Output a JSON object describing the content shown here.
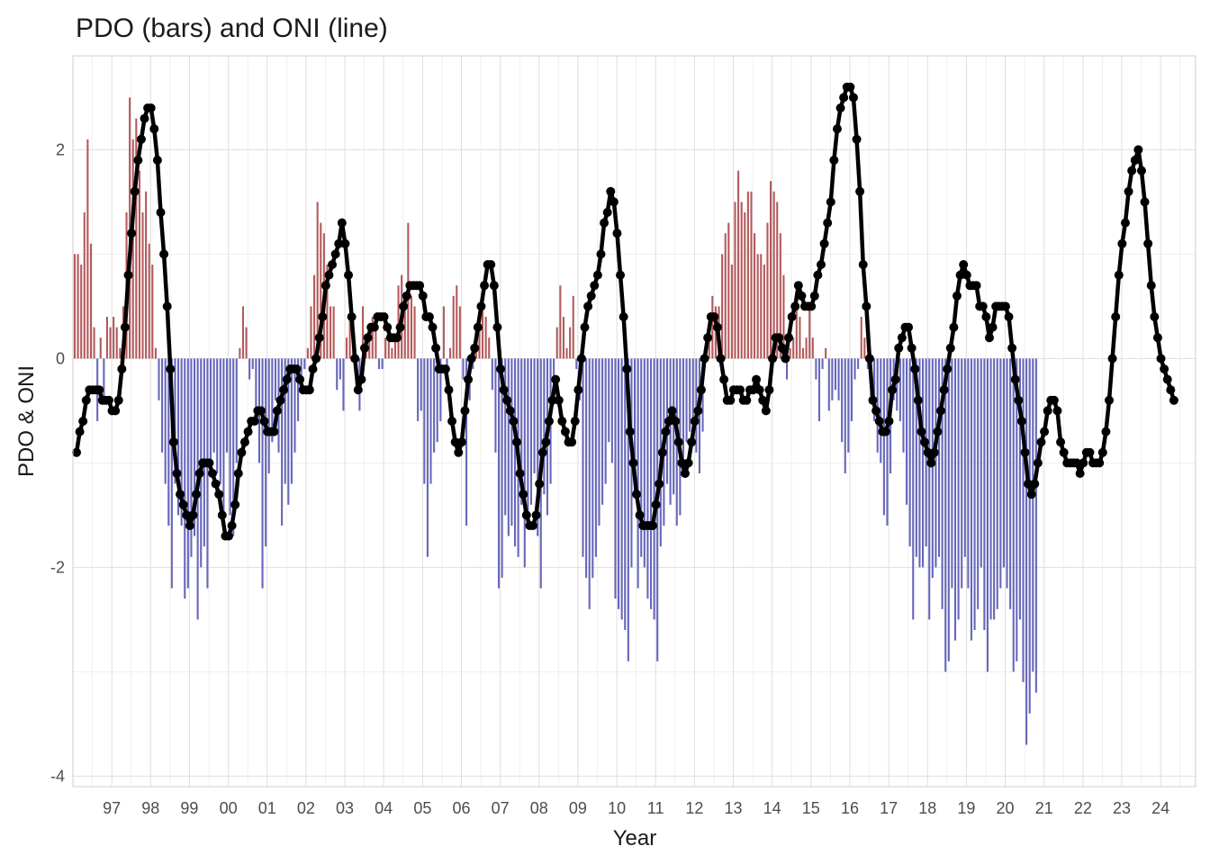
{
  "chart_data": {
    "type": "bar",
    "title": "PDO (bars) and ONI (line)",
    "xlabel": "Year",
    "ylabel": "PDO & ONI",
    "ylim": [
      -4.1,
      2.9
    ],
    "xlim": [
      1996.0,
      2024.9
    ],
    "y_ticks": [
      2,
      0,
      -2,
      -4
    ],
    "y_tick_labels": [
      "2",
      "0",
      "-2",
      "-4"
    ],
    "x_ticks": [
      1997,
      1998,
      1999,
      2000,
      2001,
      2002,
      2003,
      2004,
      2005,
      2006,
      2007,
      2008,
      2009,
      2010,
      2011,
      2012,
      2013,
      2014,
      2015,
      2016,
      2017,
      2018,
      2019,
      2020,
      2021,
      2022,
      2023,
      2024
    ],
    "x_tick_labels": [
      "97",
      "98",
      "99",
      "00",
      "01",
      "02",
      "03",
      "04",
      "05",
      "06",
      "07",
      "08",
      "09",
      "10",
      "11",
      "12",
      "13",
      "14",
      "15",
      "16",
      "17",
      "18",
      "19",
      "20",
      "21",
      "22",
      "23",
      "24"
    ],
    "colors": {
      "positive": "#b4595a",
      "negative": "#6666bb",
      "line": "#000000"
    },
    "series": [
      {
        "name": "PDO",
        "kind": "bar",
        "start": 1996.0,
        "step": 0.08333,
        "values": [
          1.0,
          1.0,
          0.9,
          1.4,
          2.1,
          1.1,
          0.3,
          -0.6,
          0.2,
          -0.4,
          0.4,
          0.3,
          0.4,
          0.3,
          0.1,
          0.5,
          1.4,
          2.5,
          2.1,
          2.3,
          1.8,
          1.4,
          1.6,
          1.1,
          0.9,
          0.1,
          -0.4,
          -0.9,
          -1.2,
          -1.6,
          -2.2,
          -1.2,
          -1.5,
          -1.6,
          -2.3,
          -2.2,
          -1.9,
          -1.7,
          -2.5,
          -2.0,
          -1.8,
          -2.2,
          -1.0,
          -0.9,
          -1.1,
          -1.2,
          -1.6,
          -0.9,
          -1.5,
          -1.7,
          -1.0,
          0.1,
          0.5,
          0.3,
          -0.2,
          -0.1,
          -0.6,
          -1.0,
          -2.2,
          -1.8,
          -1.1,
          -0.8,
          -0.4,
          -0.9,
          -1.6,
          -1.2,
          -1.4,
          -1.2,
          -0.9,
          -0.6,
          -0.3,
          -0.1,
          0.1,
          0.5,
          0.8,
          1.5,
          1.3,
          1.2,
          0.9,
          0.5,
          0.5,
          -0.3,
          -0.2,
          -0.5,
          0.2,
          0.4,
          0.4,
          -0.3,
          -0.5,
          0.5,
          0.1,
          0.2,
          0.4,
          0.3,
          -0.1,
          -0.1,
          0.2,
          0.3,
          0.1,
          0.2,
          0.7,
          0.8,
          0.6,
          1.3,
          0.6,
          0.5,
          -0.6,
          -0.5,
          -1.2,
          -1.9,
          -1.2,
          -0.9,
          -0.8,
          -0.6,
          0.5,
          -0.2,
          0.1,
          0.6,
          0.7,
          0.5,
          -0.2,
          -1.6,
          -0.4,
          -0.1,
          0.3,
          0.3,
          0.5,
          0.4,
          0.2,
          -0.3,
          -0.9,
          -2.2,
          -2.1,
          -1.5,
          -1.7,
          -1.6,
          -1.8,
          -1.9,
          -1.4,
          -2.0,
          -1.6,
          -1.4,
          -1.1,
          -1.7,
          -2.2,
          -1.3,
          -1.5,
          -1.2,
          -0.3,
          0.3,
          0.7,
          0.4,
          0.1,
          0.3,
          0.6,
          -0.1,
          -0.4,
          -1.9,
          -2.1,
          -2.4,
          -2.1,
          -1.9,
          -1.6,
          -1.4,
          -1.2,
          -0.8,
          -1.0,
          -2.3,
          -2.4,
          -2.5,
          -2.6,
          -2.9,
          -2.0,
          -1.3,
          -2.2,
          -1.9,
          -2.0,
          -2.3,
          -2.4,
          -2.5,
          -2.9,
          -1.8,
          -1.6,
          -1.2,
          -1.4,
          -1.3,
          -1.6,
          -1.5,
          -1.1,
          -0.8,
          -0.7,
          -0.8,
          -0.9,
          -1.1,
          -0.7,
          0.2,
          0.3,
          0.6,
          0.5,
          0.5,
          1.0,
          1.2,
          1.3,
          0.9,
          1.5,
          1.8,
          1.5,
          1.4,
          1.6,
          1.6,
          1.2,
          1.0,
          1.0,
          0.9,
          1.3,
          1.7,
          1.6,
          1.5,
          1.2,
          0.8,
          -0.2,
          0.1,
          0.2,
          0.6,
          0.4,
          0.1,
          0.2,
          0.5,
          0.2,
          -0.2,
          -0.6,
          -0.1,
          0.1,
          -0.5,
          -0.4,
          -0.3,
          -0.4,
          -0.8,
          -1.1,
          -0.9,
          -0.6,
          -0.2,
          -0.1,
          0.4,
          0.2,
          -0.1,
          -0.4,
          -0.6,
          -0.9,
          -1.0,
          -1.5,
          -1.6,
          -1.1,
          -0.4,
          -0.5,
          -0.6,
          -0.9,
          -1.4,
          -1.8,
          -2.5,
          -1.9,
          -2.0,
          -2.0,
          -1.8,
          -2.5,
          -2.1,
          -2.0,
          -1.9,
          -2.4,
          -3.0,
          -2.9,
          -2.2,
          -2.7,
          -2.5,
          -2.2,
          -1.9,
          -2.2,
          -2.7,
          -2.6,
          -2.4,
          -2.0,
          -2.6,
          -3.0,
          -2.5,
          -2.5,
          -2.4,
          -2.2,
          -2.0,
          -2.2,
          -2.4,
          -3.0,
          -2.9,
          -2.5,
          -3.1,
          -3.7,
          -3.4,
          -3.0,
          -3.2
        ]
      },
      {
        "name": "ONI",
        "kind": "line",
        "start": 1996.0,
        "step": 0.08333,
        "values": [
          -0.9,
          -0.7,
          -0.6,
          -0.4,
          -0.3,
          -0.3,
          -0.3,
          -0.3,
          -0.4,
          -0.4,
          -0.4,
          -0.5,
          -0.5,
          -0.4,
          -0.1,
          0.3,
          0.8,
          1.2,
          1.6,
          1.9,
          2.1,
          2.3,
          2.4,
          2.4,
          2.2,
          1.9,
          1.4,
          1.0,
          0.5,
          -0.1,
          -0.8,
          -1.1,
          -1.3,
          -1.4,
          -1.5,
          -1.6,
          -1.5,
          -1.3,
          -1.1,
          -1.0,
          -1.0,
          -1.0,
          -1.1,
          -1.2,
          -1.3,
          -1.5,
          -1.7,
          -1.7,
          -1.6,
          -1.4,
          -1.1,
          -0.9,
          -0.8,
          -0.7,
          -0.6,
          -0.6,
          -0.5,
          -0.5,
          -0.6,
          -0.7,
          -0.7,
          -0.7,
          -0.5,
          -0.4,
          -0.3,
          -0.2,
          -0.1,
          -0.1,
          -0.1,
          -0.2,
          -0.3,
          -0.3,
          -0.3,
          -0.1,
          0.0,
          0.2,
          0.4,
          0.7,
          0.8,
          0.9,
          1.0,
          1.1,
          1.3,
          1.1,
          0.8,
          0.4,
          0.0,
          -0.3,
          -0.2,
          0.1,
          0.2,
          0.3,
          0.3,
          0.4,
          0.4,
          0.4,
          0.3,
          0.2,
          0.2,
          0.2,
          0.3,
          0.5,
          0.6,
          0.7,
          0.7,
          0.7,
          0.7,
          0.6,
          0.4,
          0.4,
          0.3,
          0.1,
          -0.1,
          -0.1,
          -0.1,
          -0.3,
          -0.6,
          -0.8,
          -0.9,
          -0.8,
          -0.5,
          -0.2,
          0.0,
          0.1,
          0.3,
          0.5,
          0.7,
          0.9,
          0.9,
          0.7,
          0.3,
          -0.1,
          -0.3,
          -0.4,
          -0.5,
          -0.6,
          -0.8,
          -1.1,
          -1.3,
          -1.5,
          -1.6,
          -1.6,
          -1.5,
          -1.2,
          -0.9,
          -0.8,
          -0.6,
          -0.4,
          -0.2,
          -0.4,
          -0.6,
          -0.7,
          -0.8,
          -0.8,
          -0.6,
          -0.3,
          0.0,
          0.3,
          0.5,
          0.6,
          0.7,
          0.8,
          1.0,
          1.3,
          1.4,
          1.6,
          1.5,
          1.2,
          0.8,
          0.4,
          -0.1,
          -0.7,
          -1.0,
          -1.3,
          -1.5,
          -1.6,
          -1.6,
          -1.6,
          -1.6,
          -1.4,
          -1.2,
          -0.9,
          -0.7,
          -0.6,
          -0.5,
          -0.6,
          -0.8,
          -1.0,
          -1.1,
          -1.0,
          -0.8,
          -0.6,
          -0.5,
          -0.3,
          0.0,
          0.2,
          0.4,
          0.4,
          0.3,
          0.0,
          -0.2,
          -0.4,
          -0.4,
          -0.3,
          -0.3,
          -0.3,
          -0.4,
          -0.4,
          -0.3,
          -0.3,
          -0.2,
          -0.3,
          -0.4,
          -0.5,
          -0.3,
          0.0,
          0.2,
          0.2,
          0.1,
          0.0,
          0.2,
          0.4,
          0.5,
          0.7,
          0.6,
          0.5,
          0.5,
          0.5,
          0.6,
          0.8,
          0.9,
          1.1,
          1.3,
          1.5,
          1.9,
          2.2,
          2.4,
          2.5,
          2.6,
          2.6,
          2.5,
          2.1,
          1.6,
          0.9,
          0.5,
          0.0,
          -0.4,
          -0.5,
          -0.6,
          -0.7,
          -0.7,
          -0.6,
          -0.3,
          -0.2,
          0.1,
          0.2,
          0.3,
          0.3,
          0.1,
          -0.1,
          -0.4,
          -0.7,
          -0.8,
          -0.9,
          -1.0,
          -0.9,
          -0.7,
          -0.5,
          -0.3,
          -0.1,
          0.1,
          0.3,
          0.6,
          0.8,
          0.9,
          0.8,
          0.7,
          0.7,
          0.7,
          0.5,
          0.5,
          0.4,
          0.2,
          0.3,
          0.5,
          0.5,
          0.5,
          0.5,
          0.4,
          0.1,
          -0.2,
          -0.4,
          -0.6,
          -0.9,
          -1.2,
          -1.3,
          -1.2,
          -1.0,
          -0.8,
          -0.7,
          -0.5,
          -0.4,
          -0.4,
          -0.5,
          -0.8,
          -0.9,
          -1.0,
          -1.0,
          -1.0,
          -1.0,
          -1.1,
          -1.0,
          -0.9,
          -0.9,
          -1.0,
          -1.0,
          -1.0,
          -0.9,
          -0.7,
          -0.4,
          0.0,
          0.4,
          0.8,
          1.1,
          1.3,
          1.6,
          1.8,
          1.9,
          2.0,
          1.8,
          1.5,
          1.1,
          0.7,
          0.4,
          0.2,
          0.0,
          -0.1,
          -0.2,
          -0.3,
          -0.4
        ]
      }
    ]
  }
}
